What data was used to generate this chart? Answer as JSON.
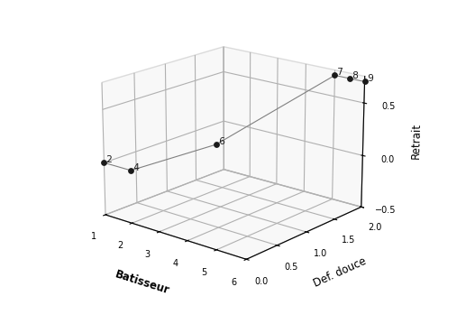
{
  "trajectory_x": [
    1,
    2,
    5,
    5,
    5.5,
    6
  ],
  "trajectory_y": [
    0.0,
    0.0,
    0.45,
    0.7,
    0.7,
    0.7
  ],
  "trajectory_z": [
    0.0,
    0.0,
    0.0,
    2.0,
    2.0,
    2.0
  ],
  "point_x": [
    1,
    2,
    5,
    5,
    5.5,
    6
  ],
  "point_y": [
    0.0,
    0.0,
    0.45,
    0.7,
    0.7,
    0.7
  ],
  "point_z": [
    0.0,
    0.0,
    0.0,
    2.0,
    2.0,
    2.0
  ],
  "point_labels": [
    "2",
    "4",
    "6",
    "7",
    "8",
    "9"
  ],
  "xlabel": "Batisseur",
  "ylabel": "Retrait",
  "zlabel": "Def. douce",
  "xlim": [
    1,
    6
  ],
  "ylim": [
    -0.5,
    0.75
  ],
  "zlim": [
    0.0,
    2.0
  ],
  "xticks": [
    1,
    2,
    3,
    4,
    5,
    6
  ],
  "yticks": [
    -0.5,
    0.0,
    0.5
  ],
  "zticks": [
    0.0,
    0.5,
    1.0,
    1.5,
    2.0
  ],
  "line_color": "#808080",
  "point_color": "#1a1a1a",
  "background_color": "#ffffff",
  "pane_color": "#f0f0f0",
  "grid_color": "#bbbbbb",
  "figsize": [
    5.27,
    3.69
  ],
  "dpi": 100,
  "elev": 18,
  "azim": -50
}
